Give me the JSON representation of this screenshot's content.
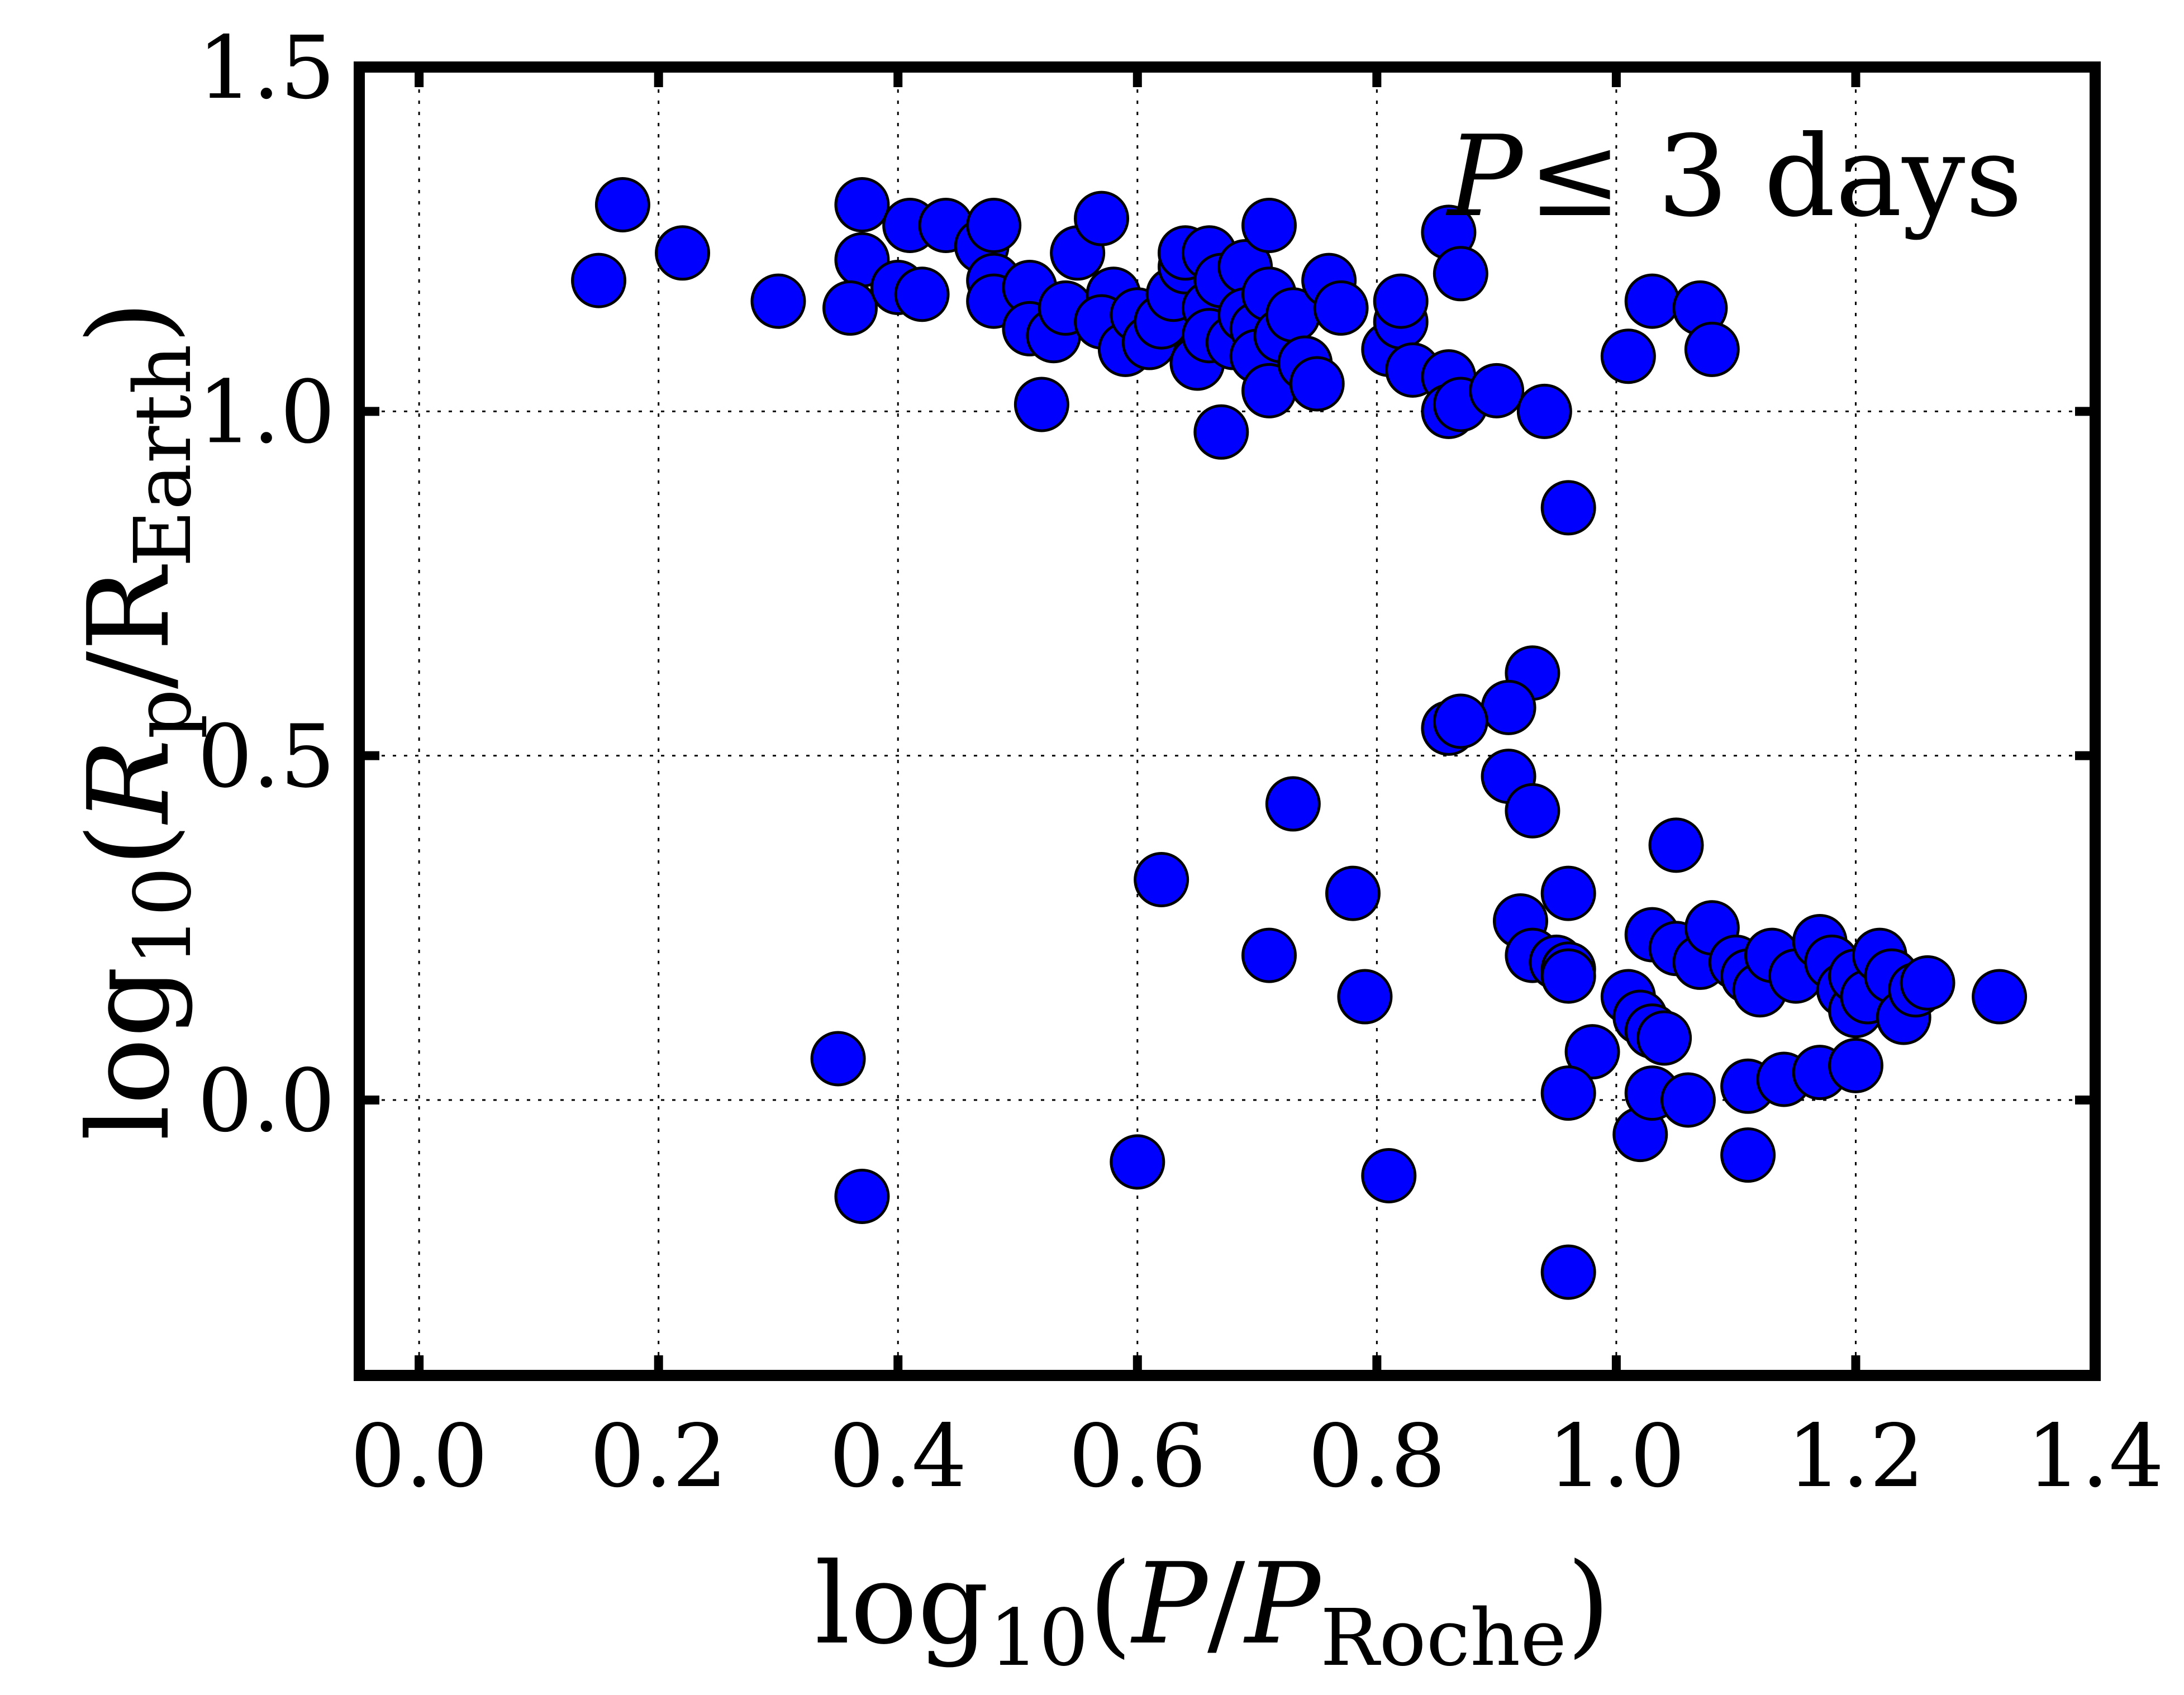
{
  "chart_data": {
    "type": "scatter",
    "xlabel": {
      "prefix": "log",
      "sub": "10",
      "open": "(",
      "var1": "P",
      "slash": "/",
      "var2": "P",
      "var2_sub": "Roche",
      "close": ")"
    },
    "ylabel": {
      "prefix": "log",
      "sub": "10",
      "open": "(",
      "var1": "R",
      "var1_sub": "p",
      "slash": "/",
      "var2": "R",
      "var2_sub": "Earth",
      "close": ")"
    },
    "annotation": {
      "var": "P",
      "rest": "≤ 3 days"
    },
    "xlim": [
      -0.05,
      1.4
    ],
    "ylim": [
      -0.4,
      1.5
    ],
    "xticks": [
      {
        "v": 0.0,
        "label": "0.0"
      },
      {
        "v": 0.2,
        "label": "0.2"
      },
      {
        "v": 0.4,
        "label": "0.4"
      },
      {
        "v": 0.6,
        "label": "0.6"
      },
      {
        "v": 0.8,
        "label": "0.8"
      },
      {
        "v": 1.0,
        "label": "1.0"
      },
      {
        "v": 1.2,
        "label": "1.2"
      },
      {
        "v": 1.4,
        "label": "1.4"
      }
    ],
    "yticks": [
      {
        "v": 0.0,
        "label": "0.0"
      },
      {
        "v": 0.5,
        "label": "0.5"
      },
      {
        "v": 1.0,
        "label": "1.0"
      },
      {
        "v": 1.5,
        "label": "1.5"
      }
    ],
    "grid": true,
    "marker_color": "#0000ff",
    "points": [
      [
        0.17,
        1.3
      ],
      [
        0.15,
        1.19
      ],
      [
        0.22,
        1.23
      ],
      [
        0.3,
        1.16
      ],
      [
        0.37,
        1.3
      ],
      [
        0.37,
        1.22
      ],
      [
        0.36,
        1.15
      ],
      [
        0.4,
        1.18
      ],
      [
        0.41,
        1.27
      ],
      [
        0.44,
        1.27
      ],
      [
        0.42,
        1.17
      ],
      [
        0.47,
        1.24
      ],
      [
        0.48,
        1.27
      ],
      [
        0.48,
        1.19
      ],
      [
        0.48,
        1.16
      ],
      [
        0.51,
        1.18
      ],
      [
        0.51,
        1.12
      ],
      [
        0.52,
        1.01
      ],
      [
        0.53,
        1.11
      ],
      [
        0.54,
        1.15
      ],
      [
        0.55,
        1.23
      ],
      [
        0.57,
        1.28
      ],
      [
        0.58,
        1.17
      ],
      [
        0.57,
        1.13
      ],
      [
        0.59,
        1.09
      ],
      [
        0.6,
        1.14
      ],
      [
        0.61,
        1.1
      ],
      [
        0.62,
        1.13
      ],
      [
        0.63,
        1.17
      ],
      [
        0.64,
        1.21
      ],
      [
        0.64,
        1.23
      ],
      [
        0.65,
        1.07
      ],
      [
        0.66,
        1.23
      ],
      [
        0.66,
        1.15
      ],
      [
        0.66,
        1.11
      ],
      [
        0.67,
        1.19
      ],
      [
        0.67,
        0.97
      ],
      [
        0.68,
        1.1
      ],
      [
        0.69,
        1.21
      ],
      [
        0.69,
        1.14
      ],
      [
        0.7,
        1.12
      ],
      [
        0.71,
        1.27
      ],
      [
        0.7,
        1.08
      ],
      [
        0.71,
        1.17
      ],
      [
        0.71,
        1.03
      ],
      [
        0.72,
        1.11
      ],
      [
        0.73,
        1.14
      ],
      [
        0.74,
        1.07
      ],
      [
        0.75,
        1.04
      ],
      [
        0.76,
        1.19
      ],
      [
        0.77,
        1.15
      ],
      [
        0.81,
        1.09
      ],
      [
        0.82,
        1.13
      ],
      [
        0.82,
        1.16
      ],
      [
        0.83,
        1.06
      ],
      [
        0.86,
        1.26
      ],
      [
        0.86,
        1.05
      ],
      [
        0.86,
        1.0
      ],
      [
        0.87,
        1.01
      ],
      [
        0.87,
        1.2
      ],
      [
        0.9,
        1.03
      ],
      [
        0.94,
        1.0
      ],
      [
        0.96,
        0.86
      ],
      [
        1.01,
        1.08
      ],
      [
        1.03,
        1.16
      ],
      [
        1.07,
        1.15
      ],
      [
        1.08,
        1.09
      ],
      [
        0.93,
        0.62
      ],
      [
        0.91,
        0.57
      ],
      [
        0.86,
        0.54
      ],
      [
        0.87,
        0.55
      ],
      [
        0.91,
        0.47
      ],
      [
        0.93,
        0.42
      ],
      [
        0.73,
        0.43
      ],
      [
        0.62,
        0.32
      ],
      [
        0.78,
        0.3
      ],
      [
        0.71,
        0.21
      ],
      [
        0.79,
        0.15
      ],
      [
        0.35,
        0.06
      ],
      [
        0.37,
        -0.14
      ],
      [
        0.6,
        -0.09
      ],
      [
        0.81,
        -0.11
      ],
      [
        0.96,
        0.3
      ],
      [
        0.92,
        0.26
      ],
      [
        0.93,
        0.21
      ],
      [
        0.95,
        0.2
      ],
      [
        0.96,
        0.19
      ],
      [
        0.96,
        0.18
      ],
      [
        0.98,
        0.07
      ],
      [
        0.96,
        0.01
      ],
      [
        0.96,
        -0.25
      ],
      [
        1.01,
        0.15
      ],
      [
        1.02,
        0.12
      ],
      [
        1.03,
        0.1
      ],
      [
        1.04,
        0.09
      ],
      [
        1.02,
        -0.05
      ],
      [
        1.03,
        0.01
      ],
      [
        1.06,
        0.0
      ],
      [
        1.05,
        0.37
      ],
      [
        1.03,
        0.24
      ],
      [
        1.05,
        0.22
      ],
      [
        1.07,
        0.2
      ],
      [
        1.08,
        0.25
      ],
      [
        1.1,
        0.2
      ],
      [
        1.11,
        0.18
      ],
      [
        1.12,
        0.16
      ],
      [
        1.13,
        0.21
      ],
      [
        1.15,
        0.18
      ],
      [
        1.17,
        0.23
      ],
      [
        1.18,
        0.2
      ],
      [
        1.19,
        0.16
      ],
      [
        1.2,
        0.13
      ],
      [
        1.2,
        0.18
      ],
      [
        1.21,
        0.15
      ],
      [
        1.22,
        0.21
      ],
      [
        1.23,
        0.18
      ],
      [
        1.24,
        0.12
      ],
      [
        1.25,
        0.16
      ],
      [
        1.26,
        0.17
      ],
      [
        1.32,
        0.15
      ],
      [
        1.11,
        0.02
      ],
      [
        1.14,
        0.03
      ],
      [
        1.17,
        0.04
      ],
      [
        1.2,
        0.05
      ],
      [
        1.11,
        -0.08
      ]
    ]
  }
}
